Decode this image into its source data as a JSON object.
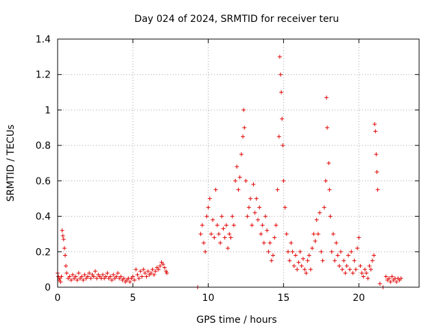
{
  "chart_data": {
    "type": "scatter",
    "title": "Day 024 of 2024, SRMTID for receiver teru",
    "xlabel": "GPS time / hours",
    "ylabel": "SRMTID / TECUs",
    "xlim": [
      0,
      24
    ],
    "ylim": [
      0,
      1.4
    ],
    "x_ticks": [
      0,
      5,
      10,
      15,
      20
    ],
    "x_tick_labels": [
      "0",
      "5",
      "10",
      "15",
      "20"
    ],
    "y_ticks": [
      0,
      0.2,
      0.4,
      0.6,
      0.8,
      1,
      1.2,
      1.4
    ],
    "y_tick_labels": [
      "0",
      "0.2",
      "0.4",
      "0.6",
      "0.8",
      "1",
      "1.2",
      "1.4"
    ],
    "grid": true,
    "marker": "+",
    "color": "#e00000",
    "series": [
      {
        "name": "SRMTID",
        "points": [
          [
            0.0,
            0.08
          ],
          [
            0.05,
            0.06
          ],
          [
            0.1,
            0.04
          ],
          [
            0.15,
            0.05
          ],
          [
            0.2,
            0.03
          ],
          [
            0.25,
            0.06
          ],
          [
            0.3,
            0.32
          ],
          [
            0.35,
            0.29
          ],
          [
            0.4,
            0.27
          ],
          [
            0.45,
            0.22
          ],
          [
            0.5,
            0.18
          ],
          [
            0.55,
            0.12
          ],
          [
            0.6,
            0.08
          ],
          [
            0.7,
            0.05
          ],
          [
            0.8,
            0.06
          ],
          [
            0.9,
            0.04
          ],
          [
            1.0,
            0.07
          ],
          [
            1.1,
            0.05
          ],
          [
            1.2,
            0.06
          ],
          [
            1.3,
            0.04
          ],
          [
            1.4,
            0.08
          ],
          [
            1.5,
            0.05
          ],
          [
            1.6,
            0.06
          ],
          [
            1.7,
            0.04
          ],
          [
            1.8,
            0.07
          ],
          [
            1.9,
            0.05
          ],
          [
            2.0,
            0.06
          ],
          [
            2.1,
            0.08
          ],
          [
            2.2,
            0.05
          ],
          [
            2.3,
            0.07
          ],
          [
            2.4,
            0.06
          ],
          [
            2.5,
            0.09
          ],
          [
            2.6,
            0.05
          ],
          [
            2.7,
            0.07
          ],
          [
            2.8,
            0.06
          ],
          [
            2.9,
            0.05
          ],
          [
            3.0,
            0.07
          ],
          [
            3.1,
            0.05
          ],
          [
            3.2,
            0.06
          ],
          [
            3.3,
            0.08
          ],
          [
            3.4,
            0.05
          ],
          [
            3.5,
            0.06
          ],
          [
            3.6,
            0.04
          ],
          [
            3.7,
            0.07
          ],
          [
            3.8,
            0.05
          ],
          [
            3.9,
            0.06
          ],
          [
            4.0,
            0.08
          ],
          [
            4.1,
            0.05
          ],
          [
            4.2,
            0.06
          ],
          [
            4.3,
            0.04
          ],
          [
            4.4,
            0.05
          ],
          [
            4.5,
            0.03
          ],
          [
            4.6,
            0.04
          ],
          [
            4.7,
            0.05
          ],
          [
            4.8,
            0.03
          ],
          [
            4.9,
            0.05
          ],
          [
            5.0,
            0.06
          ],
          [
            5.1,
            0.04
          ],
          [
            5.2,
            0.1
          ],
          [
            5.3,
            0.07
          ],
          [
            5.4,
            0.05
          ],
          [
            5.5,
            0.09
          ],
          [
            5.6,
            0.06
          ],
          [
            5.7,
            0.1
          ],
          [
            5.8,
            0.08
          ],
          [
            5.9,
            0.06
          ],
          [
            6.0,
            0.09
          ],
          [
            6.1,
            0.07
          ],
          [
            6.2,
            0.08
          ],
          [
            6.3,
            0.1
          ],
          [
            6.4,
            0.07
          ],
          [
            6.5,
            0.09
          ],
          [
            6.6,
            0.11
          ],
          [
            6.7,
            0.1
          ],
          [
            6.8,
            0.12
          ],
          [
            6.9,
            0.14
          ],
          [
            7.0,
            0.13
          ],
          [
            7.1,
            0.11
          ],
          [
            7.2,
            0.09
          ],
          [
            7.25,
            0.08
          ],
          [
            9.3,
            0.0
          ],
          [
            9.5,
            0.3
          ],
          [
            9.6,
            0.35
          ],
          [
            9.7,
            0.25
          ],
          [
            9.8,
            0.2
          ],
          [
            9.9,
            0.4
          ],
          [
            10.0,
            0.45
          ],
          [
            10.1,
            0.5
          ],
          [
            10.2,
            0.3
          ],
          [
            10.3,
            0.38
          ],
          [
            10.4,
            0.28
          ],
          [
            10.5,
            0.55
          ],
          [
            10.6,
            0.35
          ],
          [
            10.7,
            0.3
          ],
          [
            10.8,
            0.25
          ],
          [
            10.9,
            0.4
          ],
          [
            11.0,
            0.33
          ],
          [
            11.1,
            0.28
          ],
          [
            11.2,
            0.35
          ],
          [
            11.3,
            0.22
          ],
          [
            11.4,
            0.3
          ],
          [
            11.5,
            0.28
          ],
          [
            11.6,
            0.4
          ],
          [
            11.7,
            0.35
          ],
          [
            11.8,
            0.6
          ],
          [
            11.9,
            0.68
          ],
          [
            12.0,
            0.55
          ],
          [
            12.1,
            0.62
          ],
          [
            12.2,
            0.75
          ],
          [
            12.3,
            0.85
          ],
          [
            12.35,
            1.0
          ],
          [
            12.4,
            0.9
          ],
          [
            12.5,
            0.6
          ],
          [
            12.6,
            0.4
          ],
          [
            12.7,
            0.45
          ],
          [
            12.8,
            0.5
          ],
          [
            12.9,
            0.35
          ],
          [
            13.0,
            0.58
          ],
          [
            13.1,
            0.42
          ],
          [
            13.2,
            0.5
          ],
          [
            13.3,
            0.38
          ],
          [
            13.4,
            0.45
          ],
          [
            13.5,
            0.3
          ],
          [
            13.6,
            0.35
          ],
          [
            13.7,
            0.25
          ],
          [
            13.8,
            0.4
          ],
          [
            13.9,
            0.32
          ],
          [
            14.0,
            0.2
          ],
          [
            14.1,
            0.25
          ],
          [
            14.2,
            0.15
          ],
          [
            14.3,
            0.18
          ],
          [
            14.4,
            0.28
          ],
          [
            14.5,
            0.35
          ],
          [
            14.6,
            0.55
          ],
          [
            14.7,
            0.85
          ],
          [
            14.75,
            1.3
          ],
          [
            14.8,
            1.2
          ],
          [
            14.85,
            1.1
          ],
          [
            14.9,
            0.95
          ],
          [
            14.95,
            0.8
          ],
          [
            15.0,
            0.6
          ],
          [
            15.1,
            0.45
          ],
          [
            15.2,
            0.3
          ],
          [
            15.3,
            0.2
          ],
          [
            15.4,
            0.15
          ],
          [
            15.5,
            0.25
          ],
          [
            15.6,
            0.2
          ],
          [
            15.7,
            0.12
          ],
          [
            15.8,
            0.18
          ],
          [
            15.9,
            0.1
          ],
          [
            16.0,
            0.14
          ],
          [
            16.1,
            0.2
          ],
          [
            16.2,
            0.12
          ],
          [
            16.3,
            0.16
          ],
          [
            16.4,
            0.1
          ],
          [
            16.5,
            0.08
          ],
          [
            16.6,
            0.15
          ],
          [
            16.7,
            0.18
          ],
          [
            16.8,
            0.1
          ],
          [
            16.9,
            0.22
          ],
          [
            17.0,
            0.3
          ],
          [
            17.1,
            0.26
          ],
          [
            17.2,
            0.38
          ],
          [
            17.3,
            0.3
          ],
          [
            17.4,
            0.42
          ],
          [
            17.5,
            0.2
          ],
          [
            17.6,
            0.15
          ],
          [
            17.7,
            0.45
          ],
          [
            17.8,
            0.6
          ],
          [
            17.85,
            1.07
          ],
          [
            17.9,
            0.9
          ],
          [
            18.0,
            0.7
          ],
          [
            18.05,
            0.55
          ],
          [
            18.1,
            0.4
          ],
          [
            18.2,
            0.2
          ],
          [
            18.3,
            0.3
          ],
          [
            18.4,
            0.15
          ],
          [
            18.5,
            0.25
          ],
          [
            18.6,
            0.18
          ],
          [
            18.7,
            0.12
          ],
          [
            18.8,
            0.2
          ],
          [
            18.9,
            0.1
          ],
          [
            19.0,
            0.15
          ],
          [
            19.1,
            0.08
          ],
          [
            19.2,
            0.12
          ],
          [
            19.3,
            0.18
          ],
          [
            19.4,
            0.1
          ],
          [
            19.5,
            0.2
          ],
          [
            19.6,
            0.08
          ],
          [
            19.7,
            0.15
          ],
          [
            19.8,
            0.1
          ],
          [
            19.9,
            0.22
          ],
          [
            20.0,
            0.28
          ],
          [
            20.1,
            0.12
          ],
          [
            20.2,
            0.08
          ],
          [
            20.3,
            0.06
          ],
          [
            20.4,
            0.1
          ],
          [
            20.5,
            0.08
          ],
          [
            20.6,
            0.05
          ],
          [
            20.7,
            0.12
          ],
          [
            20.8,
            0.1
          ],
          [
            20.9,
            0.15
          ],
          [
            21.0,
            0.18
          ],
          [
            21.05,
            0.92
          ],
          [
            21.1,
            0.88
          ],
          [
            21.15,
            0.75
          ],
          [
            21.2,
            0.65
          ],
          [
            21.25,
            0.55
          ],
          [
            21.4,
            0.02
          ],
          [
            21.6,
            0.0
          ],
          [
            21.8,
            0.06
          ],
          [
            21.9,
            0.04
          ],
          [
            22.0,
            0.05
          ],
          [
            22.1,
            0.03
          ],
          [
            22.2,
            0.06
          ],
          [
            22.3,
            0.04
          ],
          [
            22.4,
            0.05
          ],
          [
            22.5,
            0.03
          ],
          [
            22.6,
            0.05
          ],
          [
            22.7,
            0.04
          ],
          [
            22.8,
            0.05
          ]
        ]
      }
    ]
  }
}
